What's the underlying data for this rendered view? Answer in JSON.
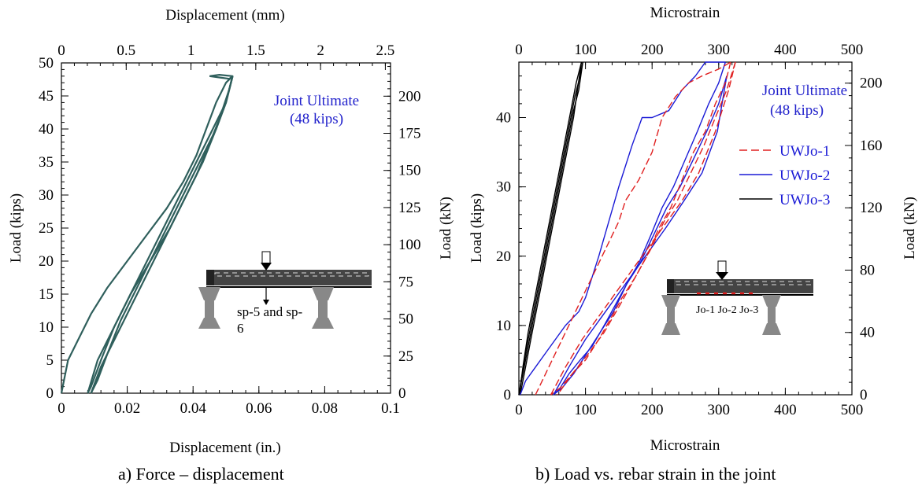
{
  "captions": {
    "a": "a) Force – displacement",
    "b": "b) Load vs. rebar strain in the joint"
  },
  "chart_data": [
    {
      "type": "line",
      "panel": "a",
      "xlabel": "Displacement (in.)",
      "x2label": "Displacement (mm)",
      "ylabel": "Load (kips)",
      "y2label": "Load (kN)",
      "xlim": [
        0,
        0.1
      ],
      "x2lim": [
        0,
        2.54
      ],
      "ylim": [
        0,
        50
      ],
      "y2lim": [
        0,
        222.4
      ],
      "xticks": [
        "0",
        "0.02",
        "0.04",
        "0.06",
        "0.08",
        "0.1"
      ],
      "x2ticks": [
        "0",
        "0.5",
        "1",
        "1.5",
        "2",
        "2.5"
      ],
      "yticks": [
        "0",
        "5",
        "10",
        "15",
        "20",
        "25",
        "30",
        "35",
        "40",
        "45",
        "50"
      ],
      "y2ticks": [
        "0",
        "25",
        "50",
        "75",
        "100",
        "125",
        "150",
        "175",
        "200"
      ],
      "line_color": "#2f5f5c",
      "annotation": [
        "Joint Ultimate",
        "(48 kips)"
      ],
      "annotation_color": "#2222cc",
      "inset_label": [
        "sp-5 and sp-",
        "6"
      ],
      "series": [
        {
          "x": [
            0.0,
            0.002,
            0.005,
            0.009,
            0.014,
            0.02,
            0.026,
            0.032,
            0.037,
            0.041,
            0.044,
            0.047,
            0.05,
            0.052
          ],
          "y": [
            0,
            5,
            8,
            12,
            16,
            20,
            24,
            28,
            32,
            36,
            40,
            44,
            47,
            48
          ]
        },
        {
          "x": [
            0.052,
            0.051,
            0.049,
            0.046,
            0.041,
            0.036,
            0.031,
            0.026,
            0.021,
            0.016,
            0.012,
            0.009,
            0.008
          ],
          "y": [
            48,
            46,
            43,
            40,
            35,
            30,
            25,
            20,
            15,
            10,
            5,
            1,
            0
          ]
        },
        {
          "x": [
            0.008,
            0.011,
            0.016,
            0.021,
            0.027,
            0.033,
            0.038,
            0.043,
            0.047,
            0.05,
            0.052
          ],
          "y": [
            0,
            5,
            10,
            15,
            20,
            25,
            30,
            35,
            40,
            44,
            48
          ]
        },
        {
          "x": [
            0.052,
            0.05,
            0.047,
            0.043,
            0.038,
            0.033,
            0.028,
            0.023,
            0.018,
            0.014,
            0.011,
            0.009
          ],
          "y": [
            48,
            44,
            40,
            36,
            31,
            26,
            21,
            16,
            11,
            6,
            2,
            0
          ]
        },
        {
          "x": [
            0.009,
            0.012,
            0.016,
            0.02,
            0.025,
            0.03,
            0.036,
            0.041,
            0.046,
            0.05,
            0.052
          ],
          "y": [
            0,
            4,
            8,
            12,
            17,
            22,
            28,
            33,
            39,
            44,
            48
          ]
        },
        {
          "x": [
            0.045,
            0.048,
            0.052,
            0.051,
            0.048,
            0.045
          ],
          "y": [
            48,
            48.2,
            48,
            47.6,
            47.8,
            48
          ]
        }
      ]
    },
    {
      "type": "line",
      "panel": "b",
      "xlabel": "Microstrain",
      "x2label": "Microstrain",
      "ylabel": "Load (kips)",
      "y2label": "Load (kN)",
      "xlim": [
        0,
        500
      ],
      "x2lim": [
        0,
        500
      ],
      "ylim": [
        0,
        48
      ],
      "y2lim": [
        0,
        213.5
      ],
      "xticks": [
        "0",
        "100",
        "200",
        "300",
        "400",
        "500"
      ],
      "x2ticks": [
        "0",
        "100",
        "200",
        "300",
        "400",
        "500"
      ],
      "yticks": [
        "0",
        "10",
        "20",
        "30",
        "40"
      ],
      "yticks_values": [
        0,
        10,
        20,
        30,
        40
      ],
      "y2ticks": [
        "0",
        "40",
        "80",
        "120",
        "160",
        "200"
      ],
      "annotation": [
        "Joint Ultimate",
        "(48 kips)"
      ],
      "annotation_color": "#2222cc",
      "inset_label": "Jo-1 Jo-2 Jo-3",
      "legend": [
        {
          "name": "UWJo-1",
          "color": "#e02020",
          "dash": "dashed"
        },
        {
          "name": "UWJo-2",
          "color": "#1a1ad6",
          "dash": "solid"
        },
        {
          "name": "UWJo-3",
          "color": "#000000",
          "dash": "solid"
        }
      ],
      "series": [
        {
          "name": "UWJo-1",
          "lines": [
            {
              "x": [
                25,
                40,
                55,
                70,
                85,
                100,
                115,
                130,
                150,
                160,
                180,
                200,
                215,
                235,
                255,
                275,
                300,
                318
              ],
              "y": [
                0,
                3,
                6,
                9,
                12,
                15,
                18,
                21,
                25,
                28,
                31,
                35,
                40,
                43,
                45,
                46,
                47,
                48
              ]
            },
            {
              "x": [
                318,
                310,
                295,
                280,
                262,
                245,
                228,
                210,
                192,
                175,
                155,
                138,
                120,
                100,
                80,
                62,
                48
              ],
              "y": [
                48,
                45,
                42,
                38,
                35,
                31,
                27,
                24,
                20,
                17,
                14,
                11,
                8,
                5,
                3,
                1,
                0
              ]
            },
            {
              "x": [
                48,
                70,
                95,
                125,
                155,
                185,
                215,
                245,
                270,
                295,
                315,
                325
              ],
              "y": [
                0,
                4,
                8,
                12,
                16,
                20,
                24,
                28,
                32,
                38,
                44,
                48
              ]
            },
            {
              "x": [
                325,
                312,
                295,
                278,
                258,
                238,
                218,
                198,
                175,
                152,
                128,
                105,
                80,
                58
              ],
              "y": [
                48,
                44,
                40,
                36,
                32,
                28,
                25,
                21,
                17,
                13,
                9,
                6,
                3,
                0
              ]
            }
          ]
        },
        {
          "name": "UWJo-2",
          "lines": [
            {
              "x": [
                2,
                10,
                25,
                40,
                55,
                70,
                90,
                100,
                110,
                120,
                135,
                150,
                170,
                185,
                200,
                225,
                245,
                265,
                280,
                300,
                310
              ],
              "y": [
                0,
                2,
                4,
                6,
                8,
                10,
                12,
                14,
                17,
                20,
                25,
                30,
                36,
                40,
                40,
                41,
                44,
                46,
                48,
                48,
                48
              ]
            },
            {
              "x": [
                310,
                300,
                285,
                268,
                250,
                232,
                215,
                198,
                180,
                162,
                145,
                128,
                110,
                92,
                75,
                62,
                52
              ],
              "y": [
                48,
                45,
                42,
                38,
                34,
                30,
                27,
                23,
                19,
                16,
                13,
                10,
                7,
                5,
                3,
                1,
                0
              ]
            },
            {
              "x": [
                52,
                75,
                100,
                130,
                160,
                190,
                220,
                248,
                275,
                298,
                312
              ],
              "y": [
                0,
                4,
                8,
                12,
                16,
                20,
                24,
                28,
                32,
                38,
                46
              ]
            },
            {
              "x": [
                312,
                300,
                282,
                262,
                242,
                222,
                202,
                182,
                162,
                142,
                122,
                102,
                82,
                65,
                52
              ],
              "y": [
                46,
                42,
                38,
                34,
                30,
                27,
                23,
                19,
                16,
                12,
                9,
                6,
                3,
                1,
                0
              ]
            }
          ]
        },
        {
          "name": "UWJo-3",
          "lines": [
            {
              "x": [
                0,
                5,
                12,
                20,
                28,
                36,
                44,
                52,
                60,
                68,
                76,
                84,
                92,
                96
              ],
              "y": [
                0,
                3,
                7,
                11,
                15,
                19,
                23,
                27,
                31,
                35,
                39,
                43,
                46,
                48
              ]
            },
            {
              "x": [
                96,
                90,
                82,
                74,
                66,
                58,
                50,
                42,
                34,
                26,
                18,
                10,
                4,
                0
              ],
              "y": [
                48,
                44,
                41,
                37,
                33,
                29,
                25,
                21,
                17,
                13,
                9,
                5,
                2,
                0
              ]
            },
            {
              "x": [
                2,
                10,
                18,
                26,
                34,
                42,
                50,
                58,
                66,
                74,
                82,
                88,
                94
              ],
              "y": [
                0,
                4,
                8,
                12,
                16,
                20,
                24,
                28,
                32,
                36,
                40,
                44,
                48
              ]
            },
            {
              "x": [
                94,
                86,
                78,
                70,
                62,
                54,
                46,
                38,
                30,
                22,
                14,
                6,
                1
              ],
              "y": [
                48,
                45,
                41,
                37,
                33,
                29,
                25,
                21,
                17,
                13,
                9,
                4,
                0
              ]
            }
          ]
        }
      ]
    }
  ]
}
